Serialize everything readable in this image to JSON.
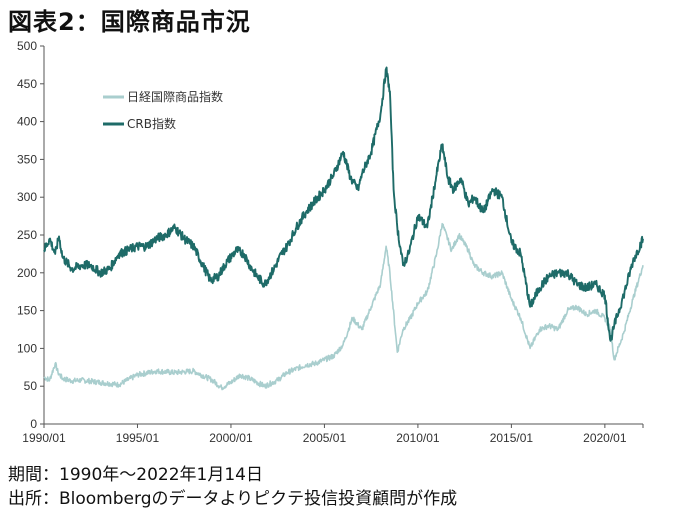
{
  "title": "図表2：国際商品市況",
  "footnotes": {
    "period": "期間：1990年～2022年1月14日",
    "source": "出所：Bloombergのデータよりピクテ投信投資顧問が作成"
  },
  "chart_data": {
    "type": "line",
    "title": "図表2：国際商品市況",
    "xlabel": "",
    "ylabel": "",
    "ylim": [
      0,
      500
    ],
    "yticks": [
      0,
      50,
      100,
      150,
      200,
      250,
      300,
      350,
      400,
      450,
      500
    ],
    "xlim": [
      1990.0,
      2022.04
    ],
    "xticks": [
      {
        "x": 1990.0,
        "label": "1990/01"
      },
      {
        "x": 1995.0,
        "label": "1995/01"
      },
      {
        "x": 2000.0,
        "label": "2000/01"
      },
      {
        "x": 2005.0,
        "label": "2005/01"
      },
      {
        "x": 2010.0,
        "label": "2010/01"
      },
      {
        "x": 2015.0,
        "label": "2015/01"
      },
      {
        "x": 2020.0,
        "label": "2020/01"
      }
    ],
    "grid": false,
    "legend": "top-left",
    "series": [
      {
        "name": "日経国際商品指数",
        "color": "#a9cece",
        "x": [
          1990.0,
          1990.3,
          1990.6,
          1990.75,
          1991.0,
          1991.5,
          1992.0,
          1993.0,
          1994.0,
          1995.0,
          1996.0,
          1997.0,
          1998.0,
          1999.0,
          1999.5,
          2000.0,
          2000.5,
          2001.0,
          2001.8,
          2002.5,
          2003.0,
          2004.0,
          2004.5,
          2005.0,
          2005.5,
          2006.0,
          2006.5,
          2007.0,
          2007.5,
          2008.0,
          2008.3,
          2008.5,
          2008.9,
          2009.2,
          2009.6,
          2010.0,
          2010.5,
          2011.0,
          2011.3,
          2011.8,
          2012.2,
          2012.7,
          2013.0,
          2013.5,
          2014.0,
          2014.5,
          2015.0,
          2015.5,
          2016.0,
          2016.5,
          2017.0,
          2017.5,
          2018.0,
          2018.5,
          2019.0,
          2019.5,
          2020.0,
          2020.3,
          2020.5,
          2021.0,
          2021.5,
          2022.04
        ],
        "values": [
          62,
          58,
          80,
          68,
          60,
          57,
          58,
          55,
          52,
          65,
          70,
          68,
          70,
          58,
          48,
          55,
          65,
          60,
          50,
          58,
          68,
          78,
          80,
          85,
          90,
          105,
          140,
          125,
          155,
          185,
          235,
          200,
          95,
          125,
          140,
          160,
          175,
          225,
          265,
          230,
          250,
          230,
          210,
          200,
          195,
          200,
          165,
          140,
          100,
          125,
          130,
          125,
          150,
          155,
          145,
          150,
          140,
          125,
          85,
          120,
          165,
          210
        ]
      },
      {
        "name": "CRB指数",
        "color": "#1e6b68",
        "x": [
          1990.0,
          1990.3,
          1990.6,
          1990.8,
          1991.0,
          1991.5,
          1992.0,
          1992.5,
          1993.0,
          1993.5,
          1994.0,
          1994.5,
          1995.0,
          1995.5,
          1996.0,
          1996.5,
          1997.0,
          1997.5,
          1998.0,
          1998.5,
          1998.9,
          1999.3,
          1999.8,
          2000.3,
          2000.7,
          2001.0,
          2001.4,
          2001.8,
          2002.3,
          2002.7,
          2003.0,
          2003.5,
          2004.0,
          2004.5,
          2005.0,
          2005.5,
          2006.0,
          2006.4,
          2006.8,
          2007.0,
          2007.5,
          2008.0,
          2008.3,
          2008.5,
          2008.7,
          2008.9,
          2009.2,
          2009.5,
          2010.0,
          2010.5,
          2011.0,
          2011.3,
          2011.6,
          2011.9,
          2012.3,
          2012.7,
          2013.0,
          2013.5,
          2014.0,
          2014.5,
          2015.0,
          2015.5,
          2016.0,
          2016.5,
          2017.0,
          2017.5,
          2018.0,
          2018.5,
          2019.0,
          2019.5,
          2020.0,
          2020.3,
          2020.5,
          2021.0,
          2021.5,
          2022.04
        ],
        "values": [
          230,
          245,
          225,
          248,
          220,
          205,
          210,
          210,
          200,
          205,
          225,
          230,
          235,
          235,
          245,
          250,
          260,
          245,
          235,
          210,
          190,
          195,
          215,
          230,
          225,
          210,
          195,
          185,
          205,
          225,
          235,
          260,
          280,
          295,
          310,
          330,
          360,
          325,
          310,
          330,
          360,
          410,
          470,
          440,
          310,
          260,
          210,
          225,
          275,
          260,
          330,
          370,
          325,
          310,
          325,
          290,
          300,
          280,
          310,
          300,
          240,
          225,
          155,
          180,
          195,
          200,
          200,
          185,
          180,
          185,
          170,
          110,
          130,
          170,
          215,
          245
        ]
      }
    ]
  }
}
